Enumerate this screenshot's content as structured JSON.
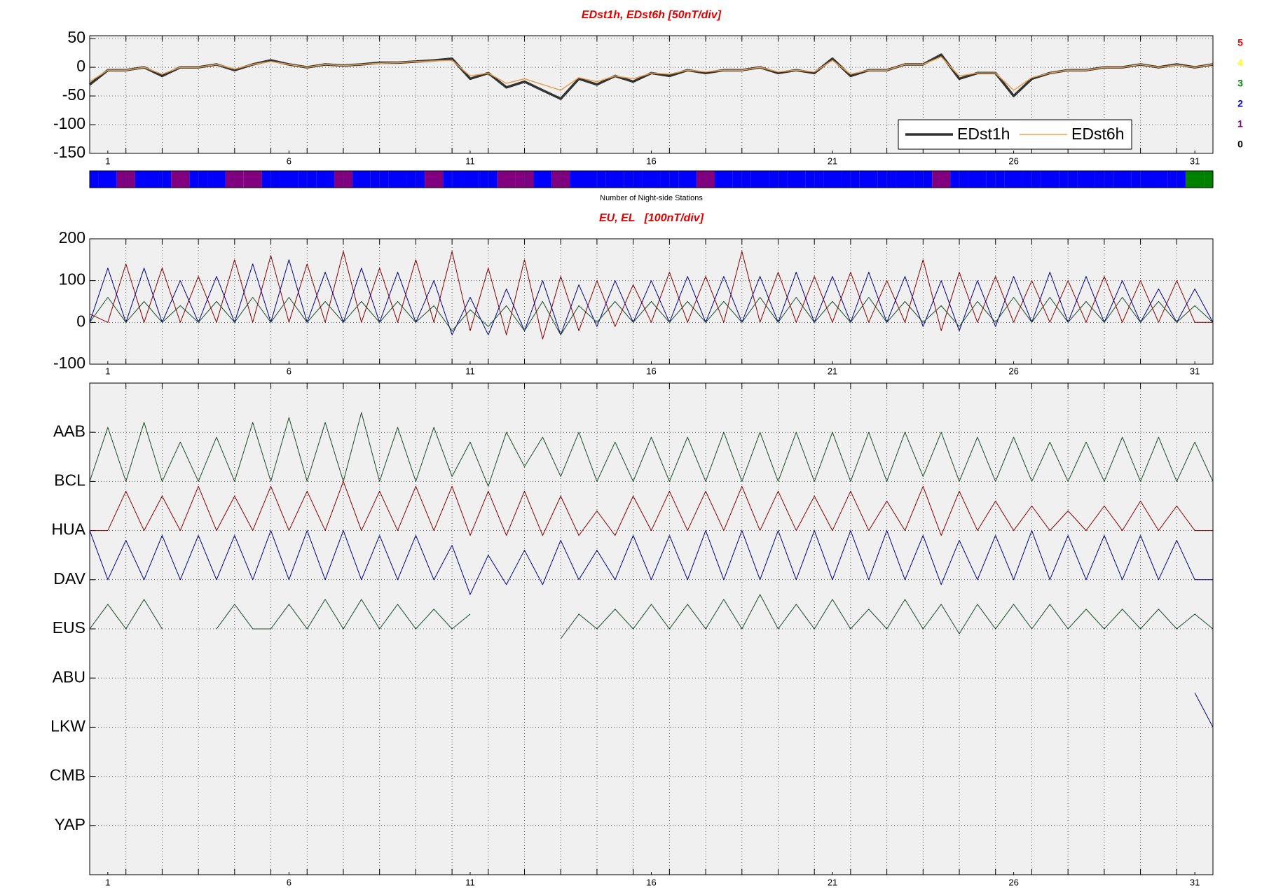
{
  "chart_data": [
    {
      "type": "line",
      "title": "EDst1h, EDst6h [50nT/div]",
      "xlim": [
        0.5,
        31.5
      ],
      "xticks": [
        1,
        6,
        11,
        16,
        21,
        26,
        31
      ],
      "ylim": [
        -150,
        55
      ],
      "yticks": [
        -150,
        -100,
        -50,
        0,
        50
      ],
      "grid": true,
      "legend": "lower right",
      "x": [
        0.5,
        1,
        1.5,
        2,
        2.5,
        3,
        3.5,
        4,
        4.5,
        5,
        5.5,
        6,
        6.5,
        7,
        7.5,
        8,
        8.5,
        9,
        9.5,
        10,
        10.5,
        11,
        11.5,
        12,
        12.5,
        13,
        13.5,
        14,
        14.5,
        15,
        15.5,
        16,
        16.5,
        17,
        17.5,
        18,
        18.5,
        19,
        19.5,
        20,
        20.5,
        21,
        21.5,
        22,
        22.5,
        23,
        23.5,
        24,
        24.5,
        25,
        25.5,
        26,
        26.5,
        27,
        27.5,
        28,
        28.5,
        29,
        29.5,
        30,
        30.5,
        31,
        31.5
      ],
      "series": [
        {
          "name": "EDst1h",
          "color": "#333333",
          "width": 3.5,
          "values": [
            -30,
            -5,
            -5,
            0,
            -15,
            0,
            0,
            5,
            -5,
            5,
            12,
            5,
            0,
            5,
            3,
            5,
            8,
            8,
            10,
            12,
            15,
            -20,
            -10,
            -35,
            -25,
            -40,
            -55,
            -20,
            -30,
            -15,
            -25,
            -10,
            -15,
            -5,
            -10,
            -5,
            -5,
            0,
            -10,
            -5,
            -10,
            15,
            -15,
            -5,
            -5,
            5,
            5,
            22,
            -20,
            -10,
            -10,
            -50,
            -20,
            -10,
            -5,
            -5,
            0,
            0,
            5,
            0,
            5,
            0,
            5
          ]
        },
        {
          "name": "EDst6h",
          "color": "#e8a050",
          "width": 1.5,
          "values": [
            -25,
            -5,
            -5,
            0,
            -12,
            0,
            0,
            5,
            -3,
            5,
            10,
            5,
            0,
            5,
            3,
            5,
            7,
            8,
            10,
            11,
            12,
            -15,
            -10,
            -28,
            -20,
            -30,
            -40,
            -18,
            -25,
            -15,
            -20,
            -10,
            -12,
            -5,
            -8,
            -5,
            -5,
            0,
            -8,
            -5,
            -8,
            12,
            -12,
            -5,
            -5,
            5,
            5,
            18,
            -15,
            -10,
            -10,
            -40,
            -18,
            -10,
            -5,
            -5,
            0,
            0,
            5,
            0,
            4,
            0,
            5
          ]
        }
      ]
    },
    {
      "type": "strip",
      "title": "Number of Night-side Stations",
      "xlim": [
        0.5,
        31.5
      ],
      "x": [
        0.5,
        1,
        1.5,
        2,
        2.5,
        3,
        3.5,
        4,
        4.5,
        5,
        5.5,
        6,
        6.5,
        7,
        7.5,
        8,
        8.5,
        9,
        9.5,
        10,
        10.5,
        11,
        11.5,
        12,
        12.5,
        13,
        13.5,
        14,
        14.5,
        15,
        15.5,
        16,
        16.5,
        17,
        17.5,
        18,
        18.5,
        19,
        19.5,
        20,
        20.5,
        21,
        21.5,
        22,
        22.5,
        23,
        23.5,
        24,
        24.5,
        25,
        25.5,
        26,
        26.5,
        27,
        27.5,
        28,
        28.5,
        29,
        29.5,
        30,
        30.5,
        31,
        31.5
      ],
      "values": [
        2,
        2,
        1,
        2,
        2,
        1,
        2,
        2,
        1,
        1,
        2,
        2,
        2,
        2,
        1,
        2,
        2,
        2,
        2,
        1,
        2,
        2,
        2,
        1,
        1,
        2,
        1,
        2,
        2,
        2,
        2,
        2,
        2,
        2,
        1,
        2,
        2,
        2,
        2,
        2,
        2,
        2,
        2,
        2,
        2,
        2,
        2,
        1,
        2,
        2,
        2,
        2,
        2,
        2,
        2,
        2,
        2,
        2,
        2,
        2,
        2,
        3,
        3
      ],
      "levels": [
        5,
        4,
        3,
        2,
        1,
        0
      ],
      "level_colors": [
        "#ff0000",
        "#ffff00",
        "#008000",
        "#0000ff",
        "#800080",
        "#000000"
      ]
    },
    {
      "type": "line",
      "title": "EU, EL   [100nT/div]",
      "xlim": [
        0.5,
        31.5
      ],
      "xticks": [
        1,
        6,
        11,
        16,
        21,
        26,
        31
      ],
      "ylim": [
        -100,
        200
      ],
      "yticks": [
        -100,
        0,
        100,
        200
      ],
      "grid": true,
      "x": [
        0.5,
        1,
        1.5,
        2,
        2.5,
        3,
        3.5,
        4,
        4.5,
        5,
        5.5,
        6,
        6.5,
        7,
        7.5,
        8,
        8.5,
        9,
        9.5,
        10,
        10.5,
        11,
        11.5,
        12,
        12.5,
        13,
        13.5,
        14,
        14.5,
        15,
        15.5,
        16,
        16.5,
        17,
        17.5,
        18,
        18.5,
        19,
        19.5,
        20,
        20.5,
        21,
        21.5,
        22,
        22.5,
        23,
        23.5,
        24,
        24.5,
        25,
        25.5,
        26,
        26.5,
        27,
        27.5,
        28,
        28.5,
        29,
        29.5,
        30,
        30.5,
        31,
        31.5
      ],
      "series": [
        {
          "color": "#8b0000",
          "width": 1,
          "values": [
            20,
            0,
            140,
            0,
            130,
            0,
            110,
            0,
            150,
            0,
            160,
            0,
            140,
            0,
            170,
            0,
            130,
            0,
            150,
            0,
            170,
            -20,
            130,
            -30,
            150,
            -40,
            110,
            -20,
            100,
            -10,
            90,
            0,
            120,
            0,
            110,
            0,
            170,
            0,
            120,
            0,
            110,
            0,
            120,
            0,
            100,
            0,
            150,
            -20,
            120,
            0,
            110,
            0,
            100,
            0,
            100,
            0,
            110,
            0,
            100,
            0,
            100,
            0,
            0
          ]
        },
        {
          "color": "#00008b",
          "width": 1,
          "values": [
            0,
            130,
            0,
            130,
            0,
            100,
            0,
            110,
            0,
            140,
            0,
            150,
            0,
            120,
            0,
            130,
            0,
            120,
            0,
            100,
            -30,
            60,
            -30,
            80,
            -20,
            100,
            -30,
            90,
            -10,
            100,
            0,
            100,
            0,
            110,
            0,
            110,
            0,
            110,
            0,
            120,
            0,
            110,
            0,
            120,
            0,
            110,
            -10,
            100,
            -20,
            100,
            -10,
            110,
            0,
            120,
            0,
            110,
            0,
            100,
            0,
            80,
            0,
            80,
            0
          ]
        },
        {
          "color": "#1a4d2a",
          "width": 1,
          "values": [
            0,
            60,
            0,
            50,
            0,
            40,
            0,
            50,
            0,
            60,
            0,
            60,
            0,
            50,
            0,
            50,
            0,
            50,
            0,
            40,
            -20,
            30,
            -10,
            40,
            -20,
            50,
            -30,
            40,
            0,
            50,
            0,
            50,
            0,
            50,
            0,
            50,
            0,
            60,
            0,
            60,
            0,
            50,
            0,
            60,
            0,
            50,
            0,
            40,
            -10,
            50,
            0,
            60,
            0,
            60,
            0,
            50,
            0,
            60,
            0,
            50,
            0,
            40,
            0
          ]
        }
      ]
    },
    {
      "type": "line",
      "xlim": [
        0.5,
        31.5
      ],
      "xticks": [
        1,
        6,
        11,
        16,
        21,
        26,
        31
      ],
      "ylim": [
        0,
        10
      ],
      "yticks": [
        {
          "value": 9,
          "label": "AAB"
        },
        {
          "value": 8,
          "label": "BCL"
        },
        {
          "value": 7,
          "label": "HUA"
        },
        {
          "value": 6,
          "label": "DAV"
        },
        {
          "value": 5,
          "label": "EUS"
        },
        {
          "value": 4,
          "label": "ABU"
        },
        {
          "value": 3,
          "label": "LKW"
        },
        {
          "value": 2,
          "label": "CMB"
        },
        {
          "value": 1,
          "label": "YAP"
        }
      ],
      "grid": true,
      "x": [
        0.5,
        1,
        1.5,
        2,
        2.5,
        3,
        3.5,
        4,
        4.5,
        5,
        5.5,
        6,
        6.5,
        7,
        7.5,
        8,
        8.5,
        9,
        9.5,
        10,
        10.5,
        11,
        11.5,
        12,
        12.5,
        13,
        13.5,
        14,
        14.5,
        15,
        15.5,
        16,
        16.5,
        17,
        17.5,
        18,
        18.5,
        19,
        19.5,
        20,
        20.5,
        21,
        21.5,
        22,
        22.5,
        23,
        23.5,
        24,
        24.5,
        25,
        25.5,
        26,
        26.5,
        27,
        27.5,
        28,
        28.5,
        29,
        29.5,
        30,
        30.5,
        31,
        31.5
      ],
      "series": [
        {
          "color": "#1a4d2a",
          "width": 1,
          "values": [
            8.0,
            9.1,
            8.0,
            9.2,
            8.0,
            8.8,
            8.0,
            8.9,
            8.0,
            9.2,
            8.0,
            9.3,
            8.0,
            9.2,
            8.0,
            9.4,
            8.0,
            9.1,
            8.0,
            9.1,
            8.1,
            8.8,
            7.9,
            9.0,
            8.3,
            8.9,
            8.1,
            9.0,
            8.0,
            8.8,
            8.0,
            8.9,
            8.0,
            8.9,
            8.0,
            9.0,
            8.0,
            9.0,
            8.0,
            9.0,
            8.0,
            9.0,
            8.0,
            9.0,
            8.0,
            9.0,
            8.1,
            9.0,
            8.0,
            8.9,
            8.0,
            8.9,
            8.0,
            8.8,
            8.0,
            8.8,
            8.0,
            8.9,
            8.0,
            8.9,
            8.0,
            8.8,
            8.0
          ]
        },
        {
          "color": "#8b0000",
          "width": 1,
          "values": [
            7.0,
            7.0,
            7.8,
            7.0,
            7.7,
            7.0,
            7.9,
            7.0,
            7.7,
            7.0,
            7.9,
            7.0,
            7.8,
            7.0,
            8.0,
            7.0,
            7.8,
            7.0,
            7.9,
            7.0,
            7.9,
            6.9,
            7.8,
            6.9,
            7.8,
            6.9,
            7.7,
            6.9,
            7.4,
            6.9,
            7.7,
            7.0,
            7.8,
            7.0,
            7.8,
            7.0,
            7.9,
            7.0,
            7.8,
            7.0,
            7.7,
            7.0,
            7.8,
            7.0,
            7.6,
            7.0,
            7.9,
            6.9,
            7.8,
            7.0,
            7.6,
            7.0,
            7.5,
            7.0,
            7.4,
            7.0,
            7.5,
            7.0,
            7.6,
            7.0,
            7.5,
            7.0,
            7.0
          ]
        },
        {
          "color": "#00008b",
          "width": 1,
          "values": [
            7.0,
            6.0,
            6.8,
            6.0,
            6.9,
            6.0,
            6.9,
            6.0,
            6.9,
            6.0,
            7.0,
            6.0,
            7.0,
            6.0,
            7.0,
            6.0,
            6.9,
            6.0,
            6.9,
            6.0,
            6.7,
            5.7,
            6.5,
            5.9,
            6.6,
            5.9,
            6.8,
            6.0,
            6.6,
            6.0,
            6.9,
            6.0,
            6.9,
            6.0,
            7.0,
            6.0,
            7.0,
            6.0,
            7.0,
            6.0,
            7.0,
            6.0,
            7.0,
            6.0,
            7.0,
            6.0,
            6.9,
            5.9,
            6.8,
            6.0,
            6.9,
            6.0,
            7.0,
            6.0,
            6.9,
            6.0,
            6.9,
            6.0,
            6.9,
            6.0,
            6.8,
            6.0,
            6.0
          ]
        },
        {
          "color": "#1a4d2a",
          "width": 1,
          "values": [
            5.0,
            5.5,
            5.0,
            5.6,
            5.0,
            null,
            null,
            5.0,
            5.5,
            5.0,
            5.0,
            5.5,
            5.0,
            5.6,
            5.0,
            5.6,
            5.0,
            5.5,
            5.0,
            5.4,
            5.0,
            5.3,
            null,
            null,
            null,
            null,
            4.8,
            5.3,
            5.0,
            5.4,
            5.0,
            5.5,
            5.0,
            5.5,
            5.0,
            5.6,
            5.0,
            5.7,
            5.0,
            5.5,
            5.0,
            5.6,
            5.0,
            5.4,
            5.0,
            5.6,
            5.0,
            5.5,
            4.9,
            5.5,
            5.0,
            5.5,
            5.0,
            5.5,
            5.0,
            5.4,
            5.0,
            5.4,
            5.0,
            5.4,
            5.0,
            5.3,
            5.0
          ]
        },
        {
          "color": "#00008b",
          "width": 1,
          "values": [
            null,
            null,
            null,
            null,
            null,
            null,
            null,
            null,
            null,
            null,
            null,
            null,
            null,
            null,
            null,
            null,
            null,
            null,
            null,
            null,
            null,
            null,
            null,
            null,
            null,
            null,
            null,
            null,
            null,
            null,
            null,
            null,
            null,
            null,
            null,
            null,
            null,
            null,
            null,
            null,
            null,
            null,
            null,
            null,
            null,
            null,
            null,
            null,
            null,
            null,
            null,
            null,
            null,
            null,
            null,
            null,
            null,
            null,
            null,
            null,
            null,
            3.7,
            3.0
          ]
        }
      ]
    }
  ]
}
